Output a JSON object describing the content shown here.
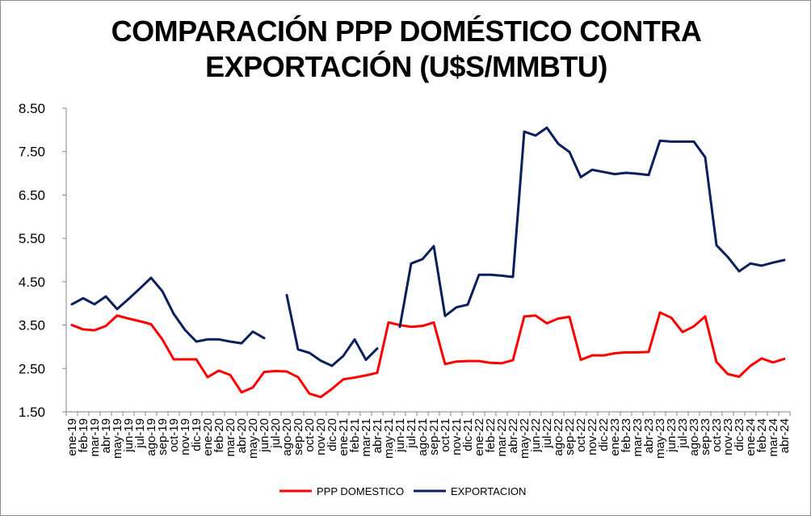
{
  "chart_data": {
    "type": "line",
    "title_line1": "COMPARACIÓN PPP DOMÉSTICO CONTRA",
    "title_line2": "EXPORTACIÓN (U$S/MMBTU)",
    "xlabel": "",
    "ylabel": "",
    "ylim": [
      1.5,
      8.5
    ],
    "yticks": [
      "1.50",
      "2.50",
      "3.50",
      "4.50",
      "5.50",
      "6.50",
      "7.50",
      "8.50"
    ],
    "grid": false,
    "legend_position": "bottom",
    "categories": [
      "ene-19",
      "feb-19",
      "mar-19",
      "abr-19",
      "may-19",
      "jun-19",
      "jul-19",
      "ago-19",
      "sep-19",
      "oct-19",
      "nov-19",
      "dic-19",
      "ene-20",
      "feb-20",
      "mar-20",
      "abr-20",
      "may-20",
      "jun-20",
      "jul-20",
      "ago-20",
      "sep-20",
      "oct-20",
      "nov-20",
      "dic-20",
      "ene-21",
      "feb-21",
      "mar-21",
      "abr-21",
      "may-21",
      "jun-21",
      "jul-21",
      "ago-21",
      "sep-21",
      "oct-21",
      "nov-21",
      "dic-21",
      "ene-22",
      "feb-22",
      "mar-22",
      "abr-22",
      "may-22",
      "jun-22",
      "jul-22",
      "ago-22",
      "sep-22",
      "oct-22",
      "nov-22",
      "dic-22",
      "ene-23",
      "feb-23",
      "mar-23",
      "abr-23",
      "may-23",
      "jun-23",
      "jul-23",
      "ago-23",
      "sep-23",
      "oct-23",
      "nov-23",
      "dic-23",
      "ene-24",
      "feb-24",
      "mar-24",
      "abr-24"
    ],
    "series": [
      {
        "name": "PPP DOMESTICO",
        "color": "#ff0000",
        "values": [
          3.5,
          3.4,
          3.38,
          3.48,
          3.72,
          3.65,
          3.59,
          3.52,
          3.17,
          2.71,
          2.71,
          2.71,
          2.3,
          2.45,
          2.35,
          1.95,
          2.06,
          2.42,
          2.44,
          2.43,
          2.3,
          1.92,
          1.84,
          2.03,
          2.25,
          2.29,
          2.34,
          2.4,
          3.56,
          3.5,
          3.46,
          3.48,
          3.56,
          2.6,
          2.66,
          2.67,
          2.67,
          2.63,
          2.62,
          2.69,
          3.7,
          3.72,
          3.54,
          3.65,
          3.69,
          2.7,
          2.8,
          2.8,
          2.85,
          2.87,
          2.87,
          2.88,
          3.79,
          3.67,
          3.34,
          3.47,
          3.7,
          2.65,
          2.37,
          2.31,
          2.56,
          2.73,
          2.64,
          2.72
        ]
      },
      {
        "name": "EXPORTACION",
        "color": "#0a1f5c",
        "values": [
          3.98,
          4.12,
          3.98,
          4.16,
          3.87,
          4.1,
          4.34,
          4.59,
          4.28,
          3.76,
          3.39,
          3.12,
          3.17,
          3.17,
          3.12,
          3.08,
          3.35,
          3.2,
          null,
          4.19,
          2.94,
          2.86,
          2.68,
          2.56,
          2.79,
          3.17,
          2.7,
          2.96,
          null,
          3.46,
          4.92,
          5.02,
          5.32,
          3.71,
          3.91,
          3.97,
          4.66,
          4.66,
          4.64,
          4.61,
          7.96,
          7.87,
          8.05,
          7.68,
          7.49,
          6.91,
          7.08,
          7.03,
          6.98,
          7.01,
          6.99,
          6.96,
          7.75,
          7.73,
          7.73,
          7.73,
          7.37,
          5.34,
          5.07,
          4.74,
          4.92,
          4.87,
          4.94,
          5.0
        ]
      }
    ]
  }
}
